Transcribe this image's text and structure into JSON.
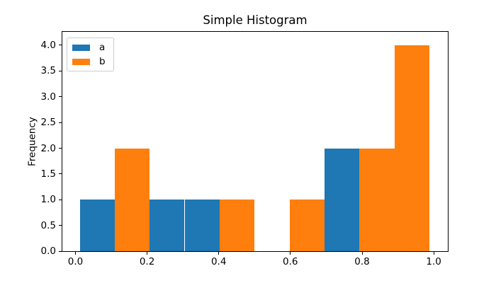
{
  "chart_data": {
    "type": "bar",
    "subtype": "histogram-overlapping",
    "title": "Simple Histogram",
    "xlabel": "",
    "ylabel": "Frequency",
    "legend": {
      "position": "upper left",
      "entries": [
        {
          "label": "a",
          "color": "#1f77b4"
        },
        {
          "label": "b",
          "color": "#ff7f0e"
        }
      ]
    },
    "axes": {
      "xlim": [
        -0.0365,
        1.0394
      ],
      "ylim": [
        0,
        4.26
      ],
      "xtick_values": [
        0.0,
        0.2,
        0.4,
        0.6,
        0.8,
        1.0
      ],
      "xtick_labels": [
        "0.0",
        "0.2",
        "0.4",
        "0.6",
        "0.8",
        "1.0"
      ],
      "ytick_values": [
        0.0,
        0.5,
        1.0,
        1.5,
        2.0,
        2.5,
        3.0,
        3.5,
        4.0
      ],
      "ytick_labels": [
        "0.0",
        "0.5",
        "1.0",
        "1.5",
        "2.0",
        "2.5",
        "3.0",
        "3.5",
        "4.0"
      ],
      "grid": false
    },
    "bin_edges": [
      0.012,
      0.1096,
      0.2072,
      0.3048,
      0.4024,
      0.5,
      0.5976,
      0.6952,
      0.7928,
      0.8904,
      0.988
    ],
    "series": [
      {
        "name": "a",
        "color": "#1f77b4",
        "counts": [
          1,
          0,
          1,
          1,
          0,
          0,
          0,
          2,
          0,
          0
        ]
      },
      {
        "name": "b",
        "color": "#ff7f0e",
        "counts": [
          0,
          2,
          0,
          0,
          1,
          0,
          1,
          0,
          2,
          4
        ]
      }
    ]
  },
  "style_colors": {
    "spine": "#000000",
    "text": "#000000",
    "legend_border": "#cccccc",
    "background": "#ffffff"
  }
}
